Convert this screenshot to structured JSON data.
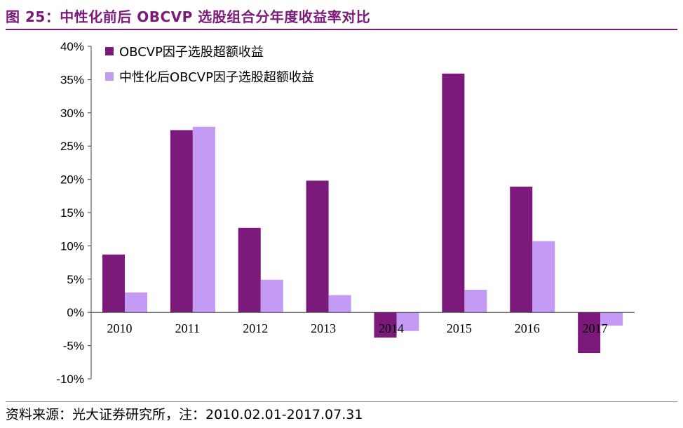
{
  "title": "图 25：中性化前后 OBCVP 选股组合分年度收益率对比",
  "source": "资料来源：光大证券研究所，注：2010.02.01-2017.07.31",
  "colors": {
    "accent": "#7B1A7A",
    "series1": "#7B1A7A",
    "series2": "#C39BF5"
  },
  "chart_data": {
    "type": "bar",
    "categories": [
      "2010",
      "2011",
      "2012",
      "2013",
      "2014",
      "2015",
      "2016",
      "2017"
    ],
    "series": [
      {
        "name": "OBCVP因子选股超额收益",
        "values": [
          8.7,
          27.4,
          12.7,
          19.8,
          -3.8,
          35.9,
          18.9,
          -6.1
        ]
      },
      {
        "name": "中性化后OBCVP因子选股超额收益",
        "values": [
          3.0,
          27.9,
          4.9,
          2.6,
          -2.8,
          3.4,
          10.7,
          -2.0
        ]
      }
    ],
    "ylim": [
      -10,
      40
    ],
    "yticks": [
      "-10%",
      "-5%",
      "0%",
      "5%",
      "10%",
      "15%",
      "20%",
      "25%",
      "30%",
      "35%",
      "40%"
    ],
    "legend_position": "top-left",
    "grid": false
  }
}
